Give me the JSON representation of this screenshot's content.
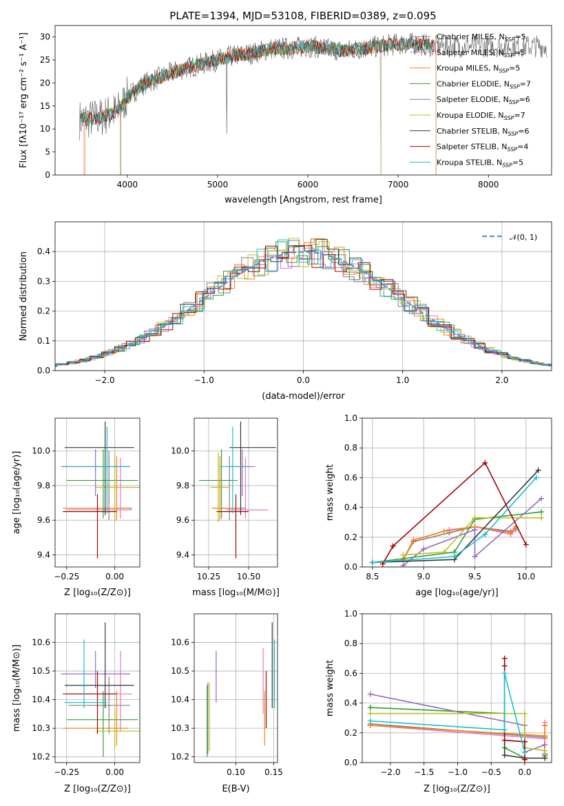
{
  "title": "PLATE=1394, MJD=53108, FIBERID=0389, z=0.095",
  "colors": {
    "Chabrier MILES": "#7f7f7f",
    "Salpeter MILES": "#e377c2",
    "Kroupa MILES": "#ff7f0e",
    "Chabrier ELODIE": "#2ca02c",
    "Salpeter ELODIE": "#9467bd",
    "Kroupa ELODIE": "#bcbd22",
    "Chabrier STELIB": "#333333",
    "Salpeter STELIB": "#a00000",
    "Kroupa STELIB": "#17becf",
    "Gauss": "#5b8ed6"
  },
  "chart_data": [
    {
      "id": "spectrum",
      "type": "line",
      "xlabel": "wavelength [Angstrom, rest frame]",
      "ylabel": "Flux [fλ10⁻¹⁷ erg cm⁻² s⁻¹ A⁻¹]",
      "xlim": [
        3200,
        8700
      ],
      "ylim": [
        0,
        32.5
      ],
      "xticks": [
        4000,
        5000,
        6000,
        7000,
        8000
      ],
      "yticks": [
        0,
        5,
        10,
        15,
        20,
        25,
        30
      ],
      "legend_position": "top-right",
      "legend": [
        {
          "name": "Chabrier MILES",
          "sub": "SSP",
          "n": "5"
        },
        {
          "name": "Salpeter MILES",
          "sub": "SSP",
          "n": "5"
        },
        {
          "name": "Kroupa MILES",
          "sub": "SSP",
          "n": "5"
        },
        {
          "name": "Chabrier ELODIE",
          "sub": "SSP",
          "n": "7"
        },
        {
          "name": "Salpeter ELODIE",
          "sub": "SSP",
          "n": "6"
        },
        {
          "name": "Kroupa ELODIE",
          "sub": "SSP",
          "n": "7"
        },
        {
          "name": "Chabrier STELIB",
          "sub": "SSP",
          "n": "6"
        },
        {
          "name": "Salpeter STELIB",
          "sub": "SSP",
          "n": "4"
        },
        {
          "name": "Kroupa STELIB",
          "sub": "SSP",
          "n": "5"
        }
      ],
      "continuum": {
        "wavelength": [
          3500,
          3700,
          3900,
          4000,
          4200,
          4400,
          4600,
          4800,
          5000,
          5200,
          5400,
          5600,
          5800,
          6000,
          6200,
          6400,
          6600,
          6800,
          7000,
          7200,
          7400
        ],
        "flux": [
          12,
          12.5,
          14,
          17,
          20,
          21.5,
          23,
          24,
          25,
          26,
          26.5,
          27.5,
          27.5,
          28,
          27.5,
          27,
          27.5,
          28,
          28.5,
          28.5,
          28
        ]
      }
    },
    {
      "id": "residuals",
      "type": "step",
      "xlabel": "(data-model)/error",
      "ylabel": "Normed distribution",
      "xlim": [
        -2.5,
        2.5
      ],
      "ylim": [
        0,
        0.5
      ],
      "xticks": [
        -2,
        -1,
        0,
        1,
        2
      ],
      "yticks": [
        0.0,
        0.1,
        0.2,
        0.3,
        0.4
      ],
      "grid": true,
      "legend": [
        "𝒩(0, 1)"
      ],
      "legend_position": "top-right",
      "reference": "normal(0,1)"
    },
    {
      "id": "age-vs-Z",
      "type": "errorbar",
      "xlabel": "Z [log₁₀(Z/Z⊙)]",
      "ylabel": "age  [log₁₀(age/yr)]",
      "xlim": [
        -0.31,
        0.13
      ],
      "ylim": [
        9.33,
        10.19
      ],
      "xticks": [
        -0.25,
        0.0
      ],
      "xticklabels": [
        "−0.25",
        "0.00"
      ],
      "yticks": [
        9.4,
        9.6,
        9.8,
        10.0
      ],
      "grid": true,
      "points": [
        {
          "model": "Chabrier MILES",
          "x": -0.03,
          "xerr": [
            0.2,
            0.12
          ],
          "y": 9.67,
          "yerr": [
            0.07,
            0.33
          ]
        },
        {
          "model": "Salpeter MILES",
          "x": 0.03,
          "xerr": [
            0.28,
            0.06
          ],
          "y": 9.66,
          "yerr": [
            0.05,
            0.3
          ]
        },
        {
          "model": "Kroupa MILES",
          "x": 0.01,
          "xerr": [
            0.28,
            0.06
          ],
          "y": 9.67,
          "yerr": [
            0.07,
            0.3
          ]
        },
        {
          "model": "Chabrier ELODIE",
          "x": -0.06,
          "xerr": [
            0.19,
            0.18
          ],
          "y": 9.83,
          "yerr": [
            0.22,
            0.18
          ]
        },
        {
          "model": "Salpeter ELODIE",
          "x": -0.1,
          "xerr": [
            0.18,
            0.18
          ],
          "y": 9.91,
          "yerr": [
            0.17,
            0.1
          ]
        },
        {
          "model": "Kroupa ELODIE",
          "x": 0.0,
          "xerr": [
            0.1,
            0.2
          ],
          "y": 9.79,
          "yerr": [
            0.2,
            0.2
          ]
        },
        {
          "model": "Chabrier STELIB",
          "x": -0.05,
          "xerr": [
            0.21,
            0.15
          ],
          "y": 10.02,
          "yerr": [
            0.39,
            0.15
          ]
        },
        {
          "model": "Salpeter STELIB",
          "x": -0.09,
          "xerr": [
            0.18,
            0.1
          ],
          "y": 9.65,
          "yerr": [
            0.27,
            0.1
          ]
        },
        {
          "model": "Kroupa STELIB",
          "x": -0.04,
          "xerr": [
            0.23,
            0.12
          ],
          "y": 9.91,
          "yerr": [
            0.27,
            0.23
          ]
        }
      ]
    },
    {
      "id": "age-vs-mass",
      "type": "errorbar",
      "xlabel": "mass [log₁₀(M/M⊙)]",
      "ylabel": "",
      "xlim": [
        10.16,
        10.68
      ],
      "ylim": [
        9.33,
        10.19
      ],
      "xticks": [
        10.25,
        10.5
      ],
      "xticklabels": [
        "10.25",
        "10.50"
      ],
      "yticks": [
        9.4,
        9.6,
        9.8,
        10.0
      ],
      "grid": true,
      "points": [
        {
          "model": "Chabrier MILES",
          "x": 10.38,
          "xerr": [
            0.08,
            0.1
          ],
          "y": 9.67,
          "yerr": [
            0.07,
            0.3
          ]
        },
        {
          "model": "Salpeter MILES",
          "x": 10.48,
          "xerr": [
            0.12,
            0.14
          ],
          "y": 9.66,
          "yerr": [
            0.05,
            0.3
          ]
        },
        {
          "model": "Kroupa MILES",
          "x": 10.32,
          "xerr": [
            0.05,
            0.12
          ],
          "y": 9.67,
          "yerr": [
            0.07,
            0.3
          ]
        },
        {
          "model": "Chabrier ELODIE",
          "x": 10.33,
          "xerr": [
            0.14,
            0.1
          ],
          "y": 9.83,
          "yerr": [
            0.22,
            0.18
          ]
        },
        {
          "model": "Salpeter ELODIE",
          "x": 10.46,
          "xerr": [
            0.07,
            0.08
          ],
          "y": 9.91,
          "yerr": [
            0.17,
            0.1
          ]
        },
        {
          "model": "Kroupa ELODIE",
          "x": 10.31,
          "xerr": [
            0.05,
            0.07
          ],
          "y": 9.79,
          "yerr": [
            0.2,
            0.2
          ]
        },
        {
          "model": "Chabrier STELIB",
          "x": 10.45,
          "xerr": [
            0.07,
            0.22
          ],
          "y": 10.02,
          "yerr": [
            0.39,
            0.15
          ]
        },
        {
          "model": "Salpeter STELIB",
          "x": 10.42,
          "xerr": [
            0.12,
            0.08
          ],
          "y": 9.65,
          "yerr": [
            0.27,
            0.1
          ]
        },
        {
          "model": "Kroupa STELIB",
          "x": 10.4,
          "xerr": [
            0.08,
            0.1
          ],
          "y": 9.91,
          "yerr": [
            0.27,
            0.23
          ]
        }
      ]
    },
    {
      "id": "weight-vs-age",
      "type": "line",
      "xlabel": "age  [log₁₀(age/yr)]",
      "ylabel": "mass weight",
      "xlim": [
        8.4,
        10.25
      ],
      "ylim": [
        0,
        1
      ],
      "xticks": [
        8.5,
        9.0,
        9.5,
        10.0
      ],
      "yticks": [
        0.0,
        0.2,
        0.4,
        0.6,
        0.8,
        1.0
      ],
      "grid": true,
      "series": [
        {
          "model": "Chabrier MILES",
          "x": [
            8.8,
            8.9,
            9.25,
            9.5,
            9.85,
            9.9
          ],
          "y": [
            0.05,
            0.17,
            0.23,
            0.27,
            0.24,
            0.26
          ]
        },
        {
          "model": "Salpeter MILES",
          "x": [
            8.8,
            8.9,
            9.25,
            9.5,
            9.85,
            9.9
          ],
          "y": [
            0.05,
            0.18,
            0.25,
            0.27,
            0.22,
            0.25
          ]
        },
        {
          "model": "Kroupa MILES",
          "x": [
            8.8,
            8.9,
            9.2,
            9.5,
            9.85,
            9.9
          ],
          "y": [
            0.05,
            0.18,
            0.24,
            0.27,
            0.23,
            0.27
          ]
        },
        {
          "model": "Chabrier ELODIE",
          "x": [
            8.5,
            9.3,
            9.5,
            10.15
          ],
          "y": [
            0.03,
            0.1,
            0.32,
            0.37
          ]
        },
        {
          "model": "Salpeter ELODIE",
          "x": [
            8.8,
            9.0,
            9.5,
            9.5,
            10.15
          ],
          "y": [
            0.01,
            0.12,
            0.25,
            0.07,
            0.46
          ]
        },
        {
          "model": "Kroupa ELODIE",
          "x": [
            8.8,
            9.2,
            9.5,
            10.15
          ],
          "y": [
            0.08,
            0.1,
            0.33,
            0.33
          ]
        },
        {
          "model": "Chabrier STELIB",
          "x": [
            8.5,
            9.3,
            10.12
          ],
          "y": [
            0.03,
            0.05,
            0.65
          ]
        },
        {
          "model": "Salpeter STELIB",
          "x": [
            8.6,
            8.7,
            9.6,
            10.0
          ],
          "y": [
            0.02,
            0.14,
            0.7,
            0.15
          ]
        },
        {
          "model": "Kroupa STELIB",
          "x": [
            8.5,
            9.3,
            9.6,
            10.1
          ],
          "y": [
            0.03,
            0.07,
            0.22,
            0.6
          ]
        }
      ]
    },
    {
      "id": "mass-vs-Z",
      "type": "errorbar",
      "xlabel": "Z [log₁₀(Z/Z⊙)]",
      "ylabel": "mass [log₁₀(M/M⊙)]",
      "xlim": [
        -0.31,
        0.13
      ],
      "ylim": [
        10.18,
        10.7
      ],
      "xticks": [
        -0.25,
        0.0
      ],
      "xticklabels": [
        "−0.25",
        "0.00"
      ],
      "yticks": [
        10.2,
        10.3,
        10.4,
        10.5,
        10.6
      ],
      "grid": true,
      "points": [
        {
          "model": "Chabrier MILES",
          "x": -0.03,
          "xerr": [
            0.21,
            0.11
          ],
          "y": 10.38,
          "yerr": [
            0.1,
            0.1
          ]
        },
        {
          "model": "Salpeter MILES",
          "x": 0.03,
          "xerr": [
            0.28,
            0.06
          ],
          "y": 10.42,
          "yerr": [
            0.13,
            0.15
          ]
        },
        {
          "model": "Kroupa MILES",
          "x": 0.01,
          "xerr": [
            0.28,
            0.06
          ],
          "y": 10.3,
          "yerr": [
            0.06,
            0.13
          ]
        },
        {
          "model": "Chabrier ELODIE",
          "x": -0.06,
          "xerr": [
            0.19,
            0.18
          ],
          "y": 10.33,
          "yerr": [
            0.13,
            0.1
          ]
        },
        {
          "model": "Salpeter ELODIE",
          "x": -0.1,
          "xerr": [
            0.18,
            0.18
          ],
          "y": 10.49,
          "yerr": [
            0.05,
            0.08
          ]
        },
        {
          "model": "Kroupa ELODIE",
          "x": 0.0,
          "xerr": [
            0.1,
            0.2
          ],
          "y": 10.29,
          "yerr": [
            0.06,
            0.08
          ]
        },
        {
          "model": "Chabrier STELIB",
          "x": -0.05,
          "xerr": [
            0.21,
            0.15
          ],
          "y": 10.45,
          "yerr": [
            0.08,
            0.22
          ]
        },
        {
          "model": "Salpeter STELIB",
          "x": -0.09,
          "xerr": [
            0.18,
            0.1
          ],
          "y": 10.42,
          "yerr": [
            0.14,
            0.08
          ]
        },
        {
          "model": "Kroupa STELIB",
          "x": -0.16,
          "xerr": [
            0.1,
            0.12
          ],
          "y": 10.39,
          "yerr": [
            0.02,
            0.22
          ]
        }
      ]
    },
    {
      "id": "mass-vs-ebv",
      "type": "errorbar",
      "xlabel": "E(B-V)",
      "ylabel": "",
      "xlim": [
        0.045,
        0.155
      ],
      "ylim": [
        10.18,
        10.7
      ],
      "xticks": [
        0.1,
        0.15
      ],
      "xticklabels": [
        "0.10",
        "0.15"
      ],
      "yticks": [
        10.2,
        10.3,
        10.4,
        10.5,
        10.6
      ],
      "grid": true,
      "points": [
        {
          "model": "Chabrier MILES",
          "x": 0.063,
          "y": 10.34,
          "yerr": [
            0.13,
            0.12
          ]
        },
        {
          "model": "Salpeter MILES",
          "x": 0.136,
          "y": 10.45,
          "yerr": [
            0.1,
            0.13
          ]
        },
        {
          "model": "Kroupa MILES",
          "x": 0.138,
          "y": 10.33,
          "yerr": [
            0.09,
            0.1
          ]
        },
        {
          "model": "Chabrier ELODIE",
          "x": 0.062,
          "y": 10.33,
          "yerr": [
            0.13,
            0.12
          ]
        },
        {
          "model": "Salpeter ELODIE",
          "x": 0.074,
          "y": 10.48,
          "yerr": [
            0.09,
            0.09
          ]
        },
        {
          "model": "Kroupa ELODIE",
          "x": 0.065,
          "y": 10.34,
          "yerr": [
            0.12,
            0.12
          ]
        },
        {
          "model": "Chabrier STELIB",
          "x": 0.148,
          "y": 10.52,
          "yerr": [
            0.15,
            0.15
          ]
        },
        {
          "model": "Salpeter STELIB",
          "x": 0.14,
          "y": 10.4,
          "yerr": [
            0.1,
            0.1
          ]
        },
        {
          "model": "Kroupa STELIB",
          "x": 0.151,
          "y": 10.49,
          "yerr": [
            0.12,
            0.12
          ]
        }
      ]
    },
    {
      "id": "weight-vs-Z",
      "type": "line",
      "xlabel": "Z [log₁₀(Z/Z⊙)]",
      "ylabel": "mass weight",
      "xlim": [
        -2.42,
        0.4
      ],
      "ylim": [
        0,
        1
      ],
      "xticks": [
        -2.0,
        -1.5,
        -1.0,
        -0.5,
        0.0
      ],
      "xticklabels": [
        "−2.0",
        "−1.5",
        "−1.0",
        "−0.5",
        "0.0"
      ],
      "yticks": [
        0.0,
        0.2,
        0.4,
        0.6,
        0.8,
        1.0
      ],
      "grid": true,
      "series": [
        {
          "model": "Chabrier MILES",
          "x": [
            -2.3,
            0.3,
            0.3,
            0.3
          ],
          "y": [
            0.26,
            0.17,
            0.25,
            0.06
          ]
        },
        {
          "model": "Salpeter MILES",
          "x": [
            -2.3,
            0.3,
            0.3,
            0.3
          ],
          "y": [
            0.25,
            0.16,
            0.27,
            0.05
          ]
        },
        {
          "model": "Kroupa MILES",
          "x": [
            -2.3,
            0.3,
            0.3,
            0.3
          ],
          "y": [
            0.25,
            0.18,
            0.25,
            0.05
          ]
        },
        {
          "model": "Chabrier ELODIE",
          "x": [
            -2.3,
            -0.3,
            -0.3,
            0.0
          ],
          "y": [
            0.37,
            0.33,
            0.1,
            0.03
          ]
        },
        {
          "model": "Salpeter ELODIE",
          "x": [
            -2.3,
            0.0,
            0.0,
            0.3,
            0.3
          ],
          "y": [
            0.46,
            0.25,
            0.07,
            0.12,
            0.05
          ]
        },
        {
          "model": "Kroupa ELODIE",
          "x": [
            -2.3,
            0.0,
            0.0,
            0.3,
            0.3
          ],
          "y": [
            0.33,
            0.33,
            0.1,
            0.08,
            0.04
          ]
        },
        {
          "model": "Chabrier STELIB",
          "x": [
            -0.3,
            -0.3,
            0.0,
            0.3
          ],
          "y": [
            0.65,
            0.05,
            0.03,
            0.03
          ]
        },
        {
          "model": "Salpeter STELIB",
          "x": [
            -0.3,
            -0.3,
            0.0,
            0.0
          ],
          "y": [
            0.7,
            0.15,
            0.14,
            0.02
          ]
        },
        {
          "model": "Kroupa STELIB",
          "x": [
            -2.3,
            -0.3,
            -0.3,
            0.0
          ],
          "y": [
            0.28,
            0.22,
            0.6,
            0.07
          ]
        }
      ]
    }
  ]
}
